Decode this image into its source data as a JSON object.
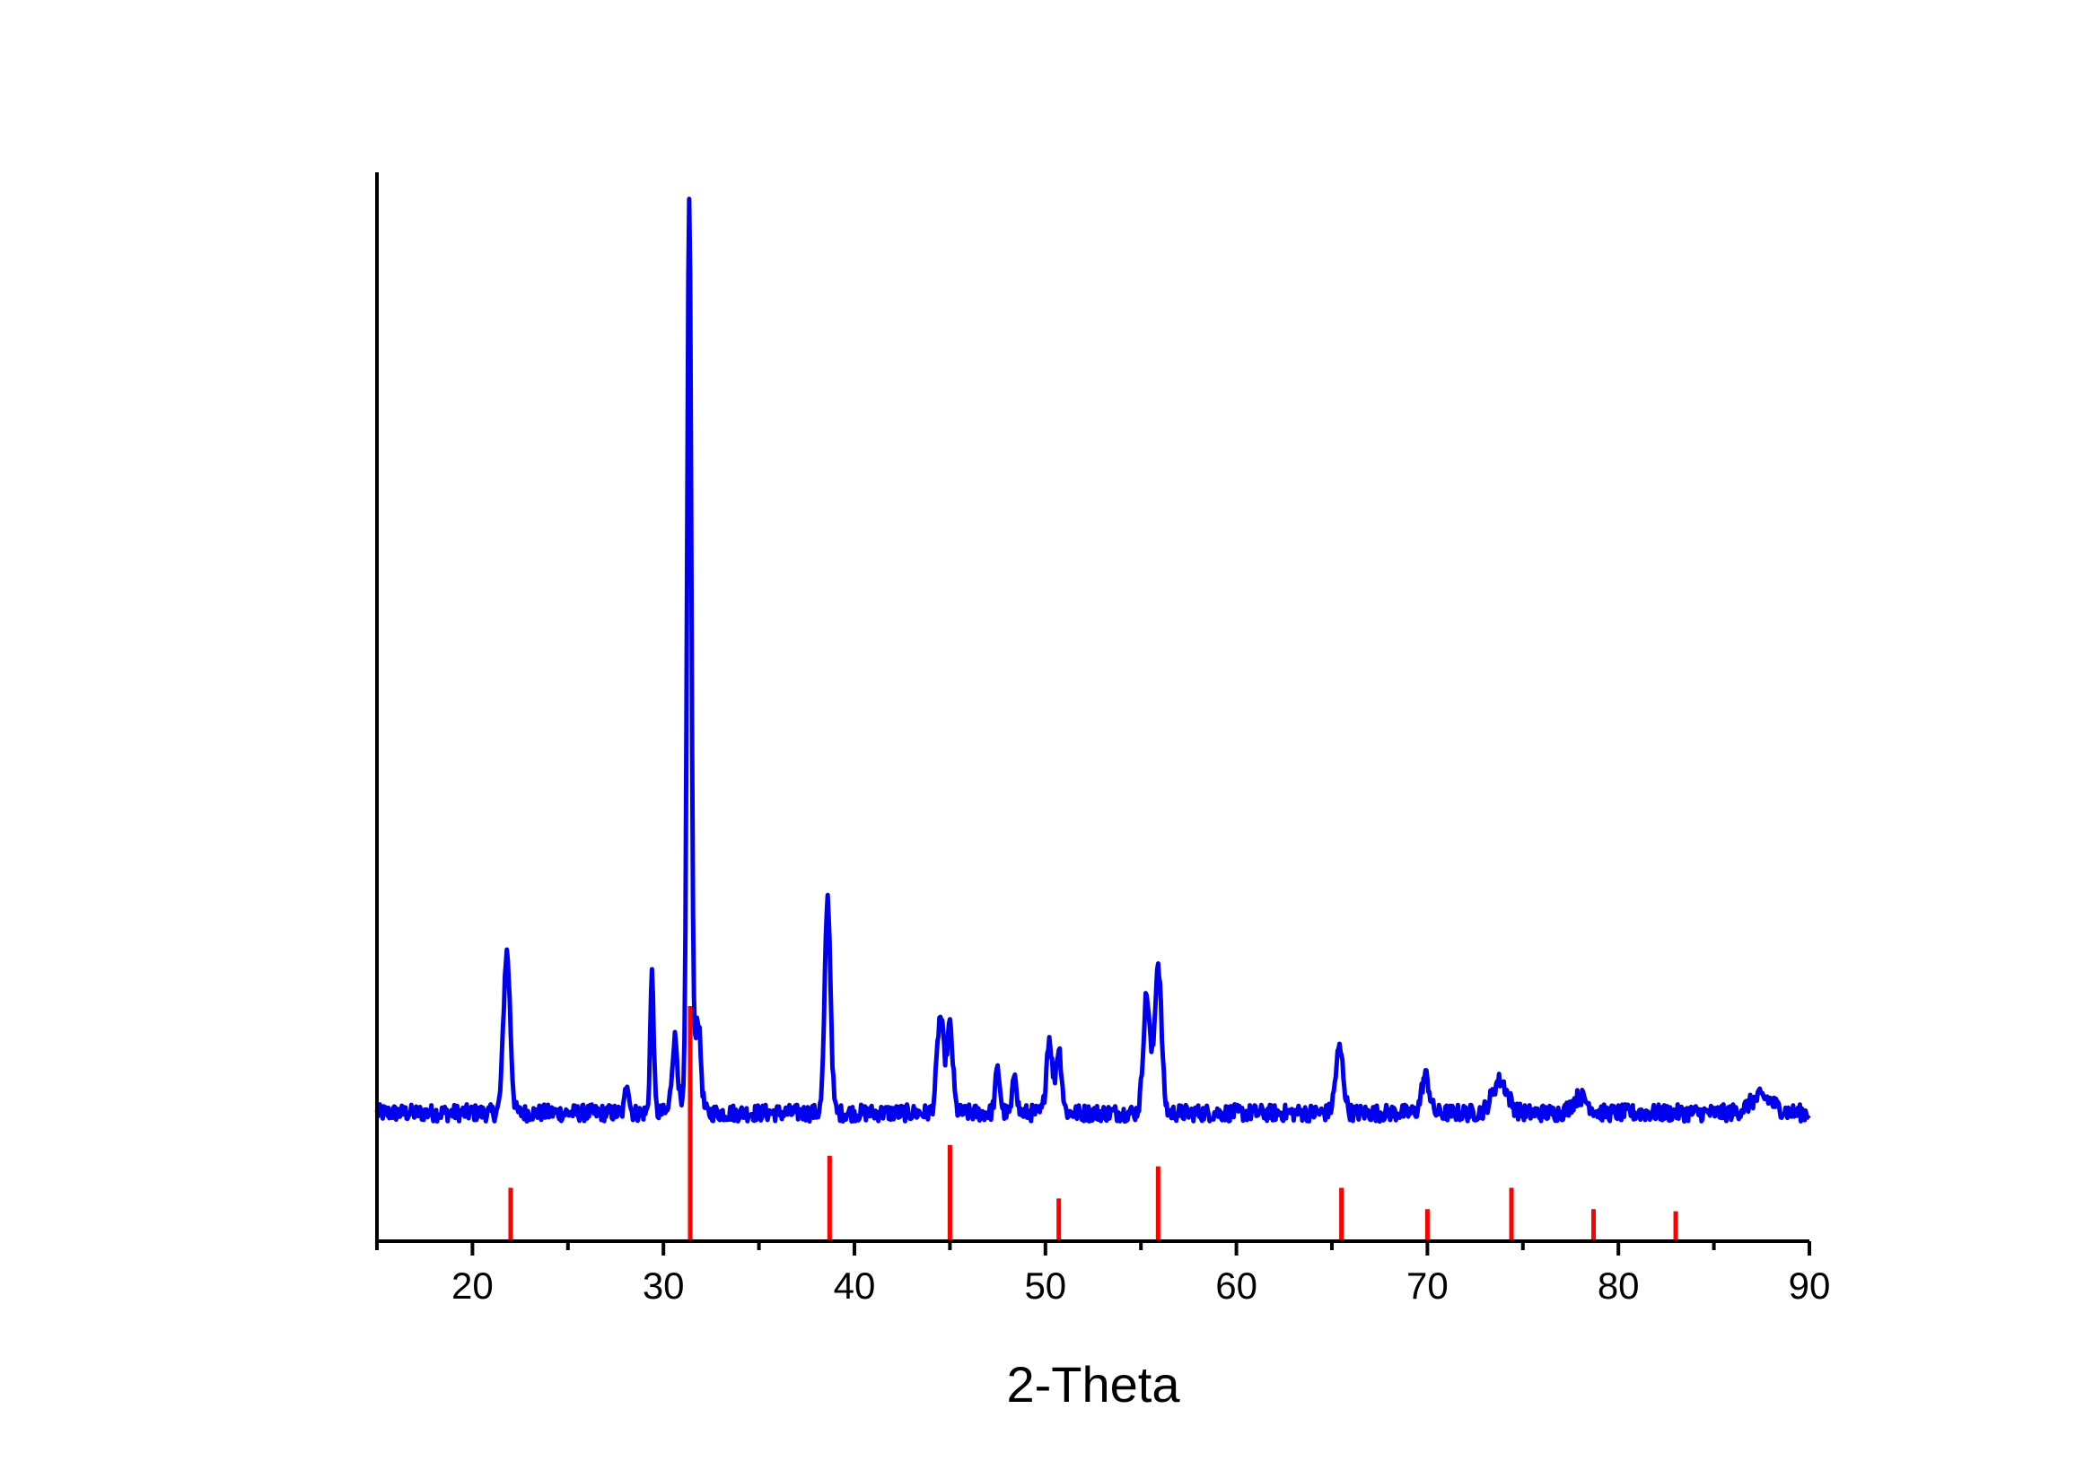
{
  "chart_data": {
    "type": "line",
    "title": "",
    "xlabel": "2-Theta",
    "ylabel": "",
    "xlim": [
      15,
      90
    ],
    "ylim": [
      0,
      100
    ],
    "x_major_ticks": [
      20,
      30,
      40,
      50,
      60,
      70,
      80,
      90
    ],
    "x_minor_ticks": [
      15,
      25,
      35,
      45,
      55,
      65,
      75,
      85
    ],
    "grid": false,
    "y_axis_ticks": false,
    "colors": {
      "pattern": "#0000ee",
      "reference": "#ff0000",
      "axis": "#000000"
    },
    "baseline": 12,
    "peaks": [
      {
        "x": 21.8,
        "h": 15,
        "w": 0.35
      },
      {
        "x": 28.1,
        "h": 3,
        "w": 0.2
      },
      {
        "x": 29.4,
        "h": 13,
        "w": 0.18
      },
      {
        "x": 30.6,
        "h": 7,
        "w": 0.3
      },
      {
        "x": 31.35,
        "h": 86,
        "w": 0.22
      },
      {
        "x": 31.8,
        "h": 9,
        "w": 0.3
      },
      {
        "x": 38.6,
        "h": 20,
        "w": 0.3
      },
      {
        "x": 44.5,
        "h": 9,
        "w": 0.35
      },
      {
        "x": 45.0,
        "h": 8,
        "w": 0.3
      },
      {
        "x": 47.5,
        "h": 4,
        "w": 0.25
      },
      {
        "x": 48.4,
        "h": 4,
        "w": 0.2
      },
      {
        "x": 50.2,
        "h": 7,
        "w": 0.3
      },
      {
        "x": 50.7,
        "h": 6,
        "w": 0.3
      },
      {
        "x": 55.3,
        "h": 11,
        "w": 0.35
      },
      {
        "x": 55.9,
        "h": 14,
        "w": 0.35
      },
      {
        "x": 65.4,
        "h": 6,
        "w": 0.4
      },
      {
        "x": 69.9,
        "h": 3.5,
        "w": 0.4
      },
      {
        "x": 73.8,
        "h": 3,
        "w": 0.8
      },
      {
        "x": 78.0,
        "h": 1.5,
        "w": 0.8
      },
      {
        "x": 87.5,
        "h": 1.5,
        "w": 1.2
      }
    ],
    "reference_lines": [
      {
        "x": 22.0,
        "h": 5.0
      },
      {
        "x": 31.4,
        "h": 22.0
      },
      {
        "x": 38.7,
        "h": 8.0
      },
      {
        "x": 45.0,
        "h": 9.0
      },
      {
        "x": 50.7,
        "h": 4.0
      },
      {
        "x": 55.9,
        "h": 7.0
      },
      {
        "x": 65.5,
        "h": 5.0
      },
      {
        "x": 70.0,
        "h": 3.0
      },
      {
        "x": 74.4,
        "h": 5.0
      },
      {
        "x": 78.7,
        "h": 3.0
      },
      {
        "x": 83.0,
        "h": 2.8
      }
    ]
  }
}
